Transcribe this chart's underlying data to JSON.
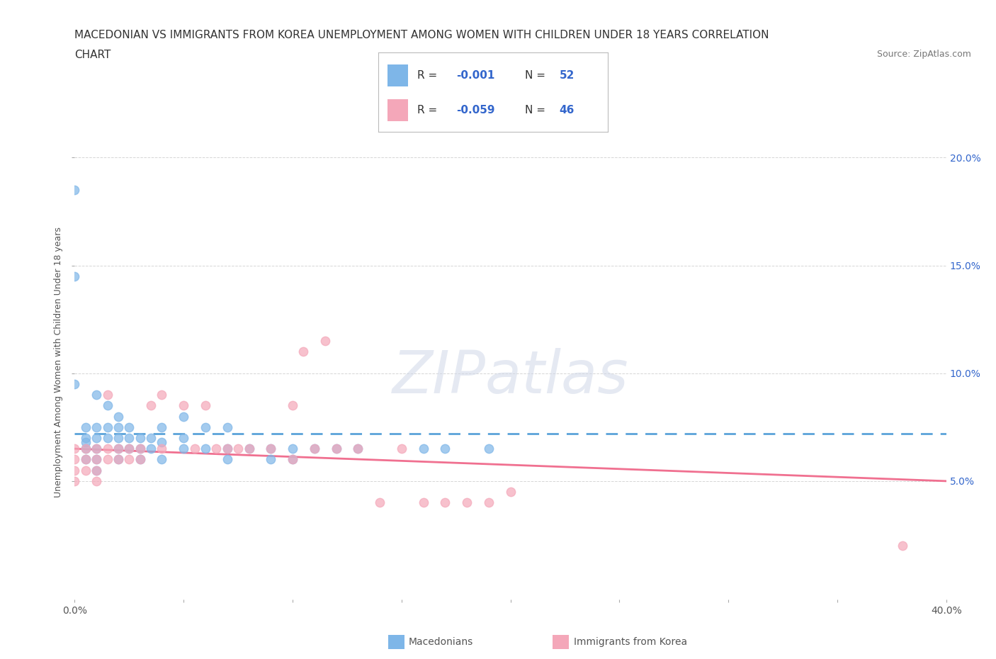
{
  "title_line1": "MACEDONIAN VS IMMIGRANTS FROM KOREA UNEMPLOYMENT AMONG WOMEN WITH CHILDREN UNDER 18 YEARS CORRELATION",
  "title_line2": "CHART",
  "source": "Source: ZipAtlas.com",
  "ylabel": "Unemployment Among Women with Children Under 18 years",
  "xlim": [
    0.0,
    0.4
  ],
  "ylim": [
    -0.005,
    0.215
  ],
  "xticks": [
    0.0,
    0.05,
    0.1,
    0.15,
    0.2,
    0.25,
    0.3,
    0.35,
    0.4
  ],
  "yticks": [
    0.05,
    0.1,
    0.15,
    0.2
  ],
  "yticklabels": [
    "5.0%",
    "10.0%",
    "15.0%",
    "20.0%"
  ],
  "macedonian_color": "#7EB6E8",
  "korean_color": "#F4A7B9",
  "macedonian_line_color": "#5BA3D9",
  "korean_line_color": "#F07090",
  "macedonian_R": -0.001,
  "macedonian_N": 52,
  "korean_R": -0.059,
  "korean_N": 46,
  "mac_x": [
    0.0,
    0.0,
    0.0,
    0.005,
    0.005,
    0.005,
    0.005,
    0.005,
    0.01,
    0.01,
    0.01,
    0.01,
    0.01,
    0.01,
    0.015,
    0.015,
    0.015,
    0.02,
    0.02,
    0.02,
    0.02,
    0.02,
    0.025,
    0.025,
    0.025,
    0.03,
    0.03,
    0.03,
    0.035,
    0.035,
    0.04,
    0.04,
    0.04,
    0.05,
    0.05,
    0.05,
    0.06,
    0.06,
    0.07,
    0.07,
    0.07,
    0.08,
    0.09,
    0.09,
    0.1,
    0.1,
    0.11,
    0.12,
    0.13,
    0.16,
    0.17,
    0.19
  ],
  "mac_y": [
    0.185,
    0.145,
    0.095,
    0.075,
    0.07,
    0.068,
    0.065,
    0.06,
    0.09,
    0.075,
    0.07,
    0.065,
    0.06,
    0.055,
    0.085,
    0.075,
    0.07,
    0.08,
    0.075,
    0.07,
    0.065,
    0.06,
    0.075,
    0.07,
    0.065,
    0.07,
    0.065,
    0.06,
    0.07,
    0.065,
    0.075,
    0.068,
    0.06,
    0.08,
    0.07,
    0.065,
    0.075,
    0.065,
    0.075,
    0.065,
    0.06,
    0.065,
    0.065,
    0.06,
    0.065,
    0.06,
    0.065,
    0.065,
    0.065,
    0.065,
    0.065,
    0.065
  ],
  "kor_x": [
    0.0,
    0.0,
    0.0,
    0.0,
    0.005,
    0.005,
    0.005,
    0.01,
    0.01,
    0.01,
    0.01,
    0.015,
    0.015,
    0.015,
    0.02,
    0.02,
    0.025,
    0.025,
    0.03,
    0.03,
    0.035,
    0.04,
    0.04,
    0.05,
    0.055,
    0.06,
    0.065,
    0.07,
    0.075,
    0.08,
    0.09,
    0.1,
    0.1,
    0.105,
    0.11,
    0.115,
    0.12,
    0.13,
    0.14,
    0.15,
    0.16,
    0.17,
    0.18,
    0.19,
    0.2,
    0.38
  ],
  "kor_y": [
    0.065,
    0.06,
    0.055,
    0.05,
    0.065,
    0.06,
    0.055,
    0.065,
    0.06,
    0.055,
    0.05,
    0.065,
    0.06,
    0.09,
    0.065,
    0.06,
    0.065,
    0.06,
    0.065,
    0.06,
    0.085,
    0.09,
    0.065,
    0.085,
    0.065,
    0.085,
    0.065,
    0.065,
    0.065,
    0.065,
    0.065,
    0.085,
    0.06,
    0.11,
    0.065,
    0.115,
    0.065,
    0.065,
    0.04,
    0.065,
    0.04,
    0.04,
    0.04,
    0.04,
    0.045,
    0.02
  ],
  "background_color": "#FFFFFF",
  "grid_color": "#CCCCCC",
  "watermark": "ZIPatlas",
  "title_fontsize": 11,
  "axis_label_fontsize": 9,
  "tick_fontsize": 10,
  "legend_label_color": "#3366CC",
  "right_ytick_color": "#3366CC",
  "mac_line_y0": 0.072,
  "mac_line_y1": 0.072,
  "kor_line_y0": 0.065,
  "kor_line_y1": 0.05
}
